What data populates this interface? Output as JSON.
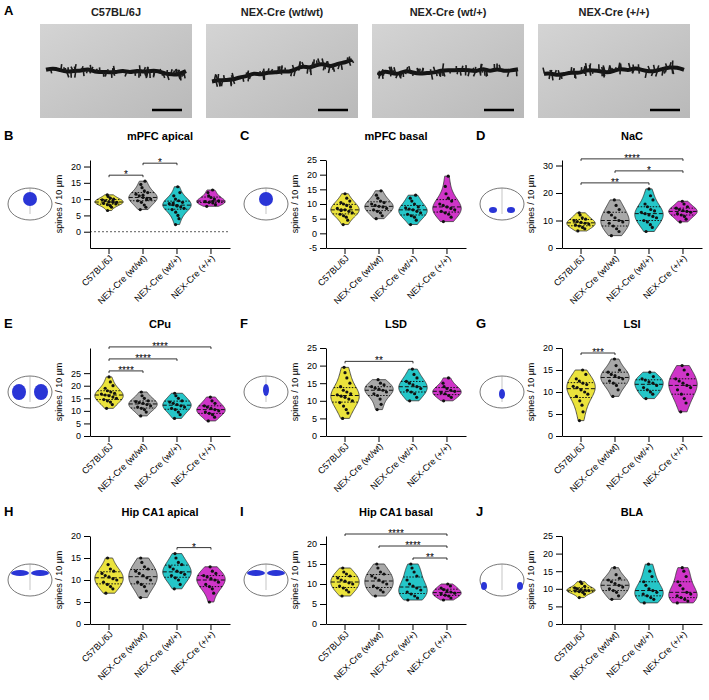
{
  "panel_a": {
    "label": "A",
    "titles": [
      "C57BL/6J",
      "NEX-Cre (wt/wt)",
      "NEX-Cre (wt/+)",
      "NEX-Cre (+/+)"
    ]
  },
  "chart_data": [
    {
      "type": "violin",
      "label": "B",
      "title": "mPFC apical",
      "y_label": "spines / 10 µm",
      "categories": [
        "C57BL/6J",
        "NEX-Cre (wt/wt)",
        "NEX-Cre (wt/+)",
        "NEX-Cre (+/+)"
      ],
      "colors": [
        "#ebe33c",
        "#a8a8a8",
        "#25c6c8",
        "#cf35c8"
      ],
      "values": [
        [
          6.5,
          7.5,
          8,
          8.3,
          8.7,
          9,
          9,
          9.2,
          9.5,
          9.8,
          10,
          10.3,
          10.8,
          11.3,
          8.5,
          9.4
        ],
        [
          6.8,
          7.5,
          8.2,
          9,
          9.5,
          10,
          10.2,
          10.5,
          11,
          11.5,
          12,
          12.5,
          13.5,
          14.5,
          15.5,
          9.8,
          11.2
        ],
        [
          2.2,
          4,
          5,
          6,
          6.8,
          7.2,
          7.6,
          8,
          8.3,
          8.6,
          9,
          9.5,
          10,
          11,
          12,
          13.8,
          7.9,
          8.8
        ],
        [
          7.8,
          8.3,
          8.8,
          9,
          9.2,
          9.5,
          10,
          10.5,
          11,
          12,
          12.8,
          9.3
        ]
      ],
      "ylim": [
        -5,
        22
      ],
      "yticks": [
        0,
        5,
        10,
        15,
        20
      ],
      "reference_line": 0,
      "annotations": [
        {
          "groups": [
            0,
            1
          ],
          "text": "*"
        },
        {
          "groups": [
            1,
            2
          ],
          "text": "*"
        }
      ]
    },
    {
      "type": "violin",
      "label": "C",
      "title": "mPFC basal",
      "y_label": "spines / 10 µm",
      "categories": [
        "C57BL/6J",
        "NEX-Cre (wt/wt)",
        "NEX-Cre (wt/+)",
        "NEX-Cre (+/+)"
      ],
      "colors": [
        "#ebe33c",
        "#a8a8a8",
        "#25c6c8",
        "#cf35c8"
      ],
      "values": [
        [
          3,
          4.5,
          5.5,
          6,
          6.5,
          7,
          7.5,
          8,
          8,
          8.5,
          9,
          9.5,
          10,
          10.5,
          11,
          12,
          13.5,
          7.8
        ],
        [
          5,
          6,
          7,
          7.5,
          8,
          8.5,
          9,
          9.2,
          9.5,
          10,
          10.5,
          11,
          12,
          13,
          14.5
        ],
        [
          3,
          4.5,
          5.5,
          6,
          6.5,
          7,
          7.5,
          8,
          8.3,
          8.7,
          9,
          10,
          11,
          12,
          13
        ],
        [
          4,
          5.5,
          6.5,
          7,
          7.5,
          8,
          8.5,
          9,
          9.5,
          10,
          11,
          12,
          13.5,
          16,
          19.5
        ]
      ],
      "ylim": [
        -5,
        25
      ],
      "yticks": [
        -5,
        0,
        5,
        10,
        15,
        20,
        25
      ],
      "annotations": []
    },
    {
      "type": "violin",
      "label": "D",
      "title": "NaC",
      "y_label": "spines / 10 µm",
      "categories": [
        "C57BL/6J",
        "NEX-Cre (wt/wt)",
        "NEX-Cre (wt/+)",
        "NEX-Cre (+/+)"
      ],
      "colors": [
        "#ebe33c",
        "#a8a8a8",
        "#25c6c8",
        "#cf35c8"
      ],
      "values": [
        [
          6.2,
          7,
          7.5,
          8,
          8.3,
          8.7,
          9,
          9.3,
          9.6,
          10,
          10.5,
          11,
          12,
          12.8
        ],
        [
          4.5,
          6,
          7,
          8,
          9,
          9.5,
          10,
          11,
          12,
          13,
          14,
          15.5,
          17.5
        ],
        [
          6,
          7.5,
          8.5,
          9.5,
          10,
          11,
          11.5,
          12,
          12.5,
          13,
          13.5,
          14,
          15,
          16,
          17.5,
          19,
          21.5
        ],
        [
          9.5,
          10.5,
          11.5,
          12,
          12.5,
          13,
          13.3,
          13.6,
          14,
          14.5,
          15,
          16,
          17
        ]
      ],
      "ylim": [
        0,
        32
      ],
      "yticks": [
        0,
        10,
        20,
        30
      ],
      "annotations": [
        {
          "groups": [
            0,
            2
          ],
          "text": "**"
        },
        {
          "groups": [
            1,
            3
          ],
          "text": "*"
        },
        {
          "groups": [
            0,
            3
          ],
          "text": "****"
        }
      ]
    },
    {
      "type": "violin",
      "label": "E",
      "title": "CPu",
      "y_label": "spines / 10 µm",
      "categories": [
        "C57BL/6J",
        "NEX-Cre (wt/wt)",
        "NEX-Cre (wt/+)",
        "NEX-Cre (+/+)"
      ],
      "colors": [
        "#ebe33c",
        "#a8a8a8",
        "#25c6c8",
        "#cf35c8"
      ],
      "values": [
        [
          11,
          12.5,
          13.5,
          14,
          14.5,
          15,
          15.5,
          16,
          16.3,
          16.7,
          17,
          17.5,
          18,
          19,
          20,
          21.5,
          23.5
        ],
        [
          8,
          9.5,
          10.5,
          11,
          11.5,
          12,
          12.5,
          13,
          13.3,
          13.7,
          14,
          15,
          16,
          17.5
        ],
        [
          7,
          8.5,
          9.5,
          10.5,
          11,
          11.5,
          12,
          12.5,
          13,
          13.5,
          14,
          15,
          16,
          17
        ],
        [
          6,
          7.5,
          8.5,
          9,
          9.5,
          10,
          10.5,
          11,
          11.5,
          12,
          13,
          14,
          15.5
        ]
      ],
      "ylim": [
        0,
        35
      ],
      "yticks": [
        0,
        5,
        10,
        15,
        20,
        25
      ],
      "annotations": [
        {
          "groups": [
            0,
            1
          ],
          "text": "****"
        },
        {
          "groups": [
            0,
            2
          ],
          "text": "****"
        },
        {
          "groups": [
            0,
            3
          ],
          "text": "****"
        }
      ]
    },
    {
      "type": "violin",
      "label": "F",
      "title": "LSD",
      "y_label": "spines / 10 µm",
      "categories": [
        "C57BL/6J",
        "NEX-Cre (wt/wt)",
        "NEX-Cre (wt/+)",
        "NEX-Cre (+/+)"
      ],
      "colors": [
        "#ebe33c",
        "#a8a8a8",
        "#25c6c8",
        "#cf35c8"
      ],
      "values": [
        [
          5,
          6.5,
          7.5,
          8.5,
          9.5,
          10,
          10.5,
          11,
          11.3,
          11.7,
          12,
          12.5,
          13,
          14,
          15,
          16.5,
          18,
          19.5
        ],
        [
          7.5,
          9,
          10.5,
          11.5,
          12,
          12.5,
          13,
          13.3,
          13.6,
          14,
          14.5,
          15,
          16
        ],
        [
          10,
          11,
          12,
          12.5,
          13,
          13.5,
          14,
          14.5,
          15,
          15.5,
          16.5,
          17.5,
          19
        ],
        [
          10,
          11,
          11.5,
          12,
          12.3,
          12.7,
          13,
          13.5,
          14,
          15,
          16.5
        ]
      ],
      "ylim": [
        0,
        25
      ],
      "yticks": [
        0,
        5,
        10,
        15,
        20,
        25
      ],
      "annotations": [
        {
          "groups": [
            0,
            2
          ],
          "text": "**"
        }
      ]
    },
    {
      "type": "violin",
      "label": "G",
      "title": "LSI",
      "y_label": "spines / 10 µm",
      "categories": [
        "C57BL/6J",
        "NEX-Cre (wt/wt)",
        "NEX-Cre (wt/+)",
        "NEX-Cre (+/+)"
      ],
      "colors": [
        "#ebe33c",
        "#a8a8a8",
        "#25c6c8",
        "#cf35c8"
      ],
      "values": [
        [
          3.5,
          5.5,
          7,
          8,
          9,
          9.5,
          10,
          10.5,
          11,
          11.3,
          11.7,
          12,
          12.5,
          13,
          14,
          15
        ],
        [
          9,
          10.5,
          11.5,
          12,
          12.5,
          13,
          13.3,
          13.7,
          14,
          14.5,
          15,
          16,
          17.5
        ],
        [
          8.5,
          9.5,
          10,
          10.5,
          11,
          11.5,
          12,
          12.3,
          12.7,
          13,
          13.5,
          14.5
        ],
        [
          5.5,
          7.5,
          8.5,
          9.5,
          10.5,
          11,
          11.5,
          12,
          12.5,
          13,
          14,
          15,
          16
        ]
      ],
      "ylim": [
        0,
        20
      ],
      "yticks": [
        0,
        5,
        10,
        15,
        20
      ],
      "annotations": [
        {
          "groups": [
            0,
            1
          ],
          "text": "***"
        }
      ]
    },
    {
      "type": "violin",
      "label": "H",
      "title": "Hip CA1 apical",
      "y_label": "spines / 10 µm",
      "categories": [
        "C57BL/6J",
        "NEX-Cre (wt/wt)",
        "NEX-Cre (wt/+)",
        "NEX-Cre (+/+)"
      ],
      "colors": [
        "#ebe33c",
        "#a8a8a8",
        "#25c6c8",
        "#cf35c8"
      ],
      "values": [
        [
          7,
          8,
          8.5,
          9,
          9.5,
          10,
          10.3,
          10.7,
          11,
          11.5,
          12,
          12.5,
          13.5,
          15
        ],
        [
          6,
          7.5,
          8.5,
          9,
          9.5,
          10,
          10.5,
          11,
          11.5,
          12,
          12.5,
          13,
          14,
          15
        ],
        [
          8,
          9,
          10,
          10.5,
          11,
          11.3,
          11.7,
          12,
          12.5,
          13,
          13.5,
          14,
          15,
          16
        ],
        [
          5,
          7,
          8,
          8.5,
          9,
          9.5,
          10,
          10.3,
          10.7,
          11,
          11.5,
          12,
          13
        ]
      ],
      "ylim": [
        0,
        20
      ],
      "yticks": [
        0,
        5,
        10,
        15,
        20
      ],
      "annotations": [
        {
          "groups": [
            2,
            3
          ],
          "text": "*"
        }
      ]
    },
    {
      "type": "violin",
      "label": "I",
      "title": "Hip CA1 basal",
      "y_label": "spines / 10 µm",
      "categories": [
        "C57BL/6J",
        "NEX-Cre (wt/wt)",
        "NEX-Cre (wt/+)",
        "NEX-Cre (+/+)"
      ],
      "colors": [
        "#ebe33c",
        "#a8a8a8",
        "#25c6c8",
        "#cf35c8"
      ],
      "values": [
        [
          7,
          8,
          8.5,
          9,
          9.5,
          10,
          10.3,
          10.7,
          11,
          11.5,
          12,
          12.5,
          13,
          14
        ],
        [
          7,
          8,
          8.5,
          9,
          9.5,
          10,
          10.5,
          11,
          11.5,
          12,
          12.5,
          13,
          14,
          15
        ],
        [
          6,
          6.5,
          7,
          7.5,
          8,
          8.5,
          9,
          9.5,
          10,
          11,
          12,
          13,
          14,
          15
        ],
        [
          6,
          6.5,
          7,
          7.2,
          7.5,
          7.7,
          8,
          8.3,
          8.6,
          9,
          9.5,
          10
        ]
      ],
      "ylim": [
        0,
        22
      ],
      "yticks": [
        0,
        5,
        10,
        15,
        20
      ],
      "annotations": [
        {
          "groups": [
            0,
            3
          ],
          "text": "****"
        },
        {
          "groups": [
            1,
            3
          ],
          "text": "****"
        },
        {
          "groups": [
            2,
            3
          ],
          "text": "**"
        }
      ]
    },
    {
      "type": "violin",
      "label": "J",
      "title": "BLA",
      "y_label": "spines / 10 µm",
      "categories": [
        "C57BL/6J",
        "NEX-Cre (wt/wt)",
        "NEX-Cre (wt/+)",
        "NEX-Cre (+/+)"
      ],
      "colors": [
        "#ebe33c",
        "#a8a8a8",
        "#25c6c8",
        "#cf35c8"
      ],
      "values": [
        [
          7.5,
          8.5,
          9,
          9.2,
          9.4,
          9.5,
          9.6,
          9.8,
          10,
          10.3,
          10.7,
          11.5,
          12
        ],
        [
          7,
          8,
          9,
          9.5,
          10,
          10.5,
          11,
          11.5,
          12,
          12.5,
          13,
          14,
          16
        ],
        [
          6,
          7,
          7.5,
          8,
          8.5,
          9,
          9.5,
          10,
          11,
          12,
          13.5,
          15,
          17
        ],
        [
          6,
          6.5,
          7,
          7.5,
          8,
          8.5,
          9,
          10,
          11,
          12,
          13.5,
          15,
          16
        ]
      ],
      "ylim": [
        0,
        25
      ],
      "yticks": [
        0,
        5,
        10,
        15,
        20,
        25
      ],
      "annotations": []
    }
  ]
}
